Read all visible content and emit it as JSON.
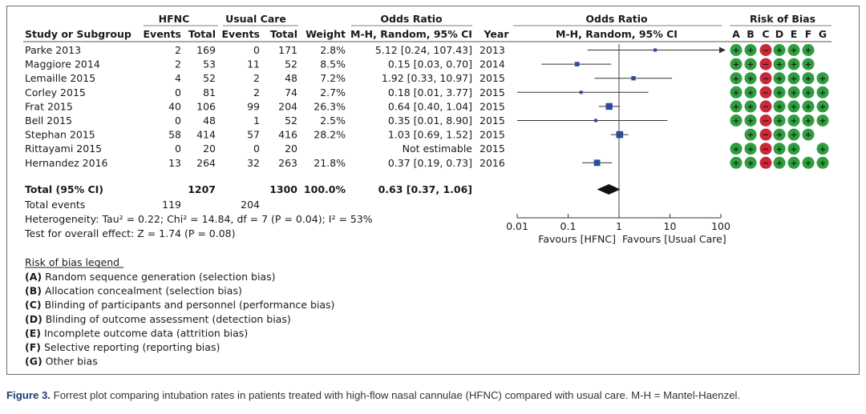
{
  "header": {
    "group1": "HFNC",
    "group2": "Usual Care",
    "or_left": "Odds Ratio",
    "or_left_sub": "M-H, Random, 95% CI",
    "or_right": "Odds Ratio",
    "or_right_sub": "M-H, Random, 95% CI",
    "rob": "Risk of Bias",
    "cols": {
      "study": "Study or Subgroup",
      "events1": "Events",
      "total1": "Total",
      "events2": "Events",
      "total2": "Total",
      "weight": "Weight",
      "year": "Year"
    },
    "rob_letters": [
      "A",
      "B",
      "C",
      "D",
      "E",
      "F",
      "G"
    ]
  },
  "studies": [
    {
      "name": "Parke 2013",
      "e1": "2",
      "t1": "169",
      "e2": "0",
      "t2": "171",
      "weight": "2.8%",
      "ci": "5.12 [0.24, 107.43]",
      "year": "2013",
      "rob": [
        "+",
        "+",
        "-",
        "+",
        "+",
        "+",
        ""
      ]
    },
    {
      "name": "Maggiore 2014",
      "e1": "2",
      "t1": "53",
      "e2": "11",
      "t2": "52",
      "weight": "8.5%",
      "ci": "0.15 [0.03, 0.70]",
      "year": "2014",
      "rob": [
        "+",
        "+",
        "-",
        "+",
        "+",
        "+",
        ""
      ]
    },
    {
      "name": "Lemaille 2015",
      "e1": "4",
      "t1": "52",
      "e2": "2",
      "t2": "48",
      "weight": "7.2%",
      "ci": "1.92 [0.33, 10.97]",
      "year": "2015",
      "rob": [
        "+",
        "+",
        "-",
        "+",
        "+",
        "+",
        "+"
      ]
    },
    {
      "name": "Corley 2015",
      "e1": "0",
      "t1": "81",
      "e2": "2",
      "t2": "74",
      "weight": "2.7%",
      "ci": "0.18 [0.01, 3.77]",
      "year": "2015",
      "rob": [
        "+",
        "+",
        "-",
        "+",
        "+",
        "+",
        "+"
      ]
    },
    {
      "name": "Frat 2015",
      "e1": "40",
      "t1": "106",
      "e2": "99",
      "t2": "204",
      "weight": "26.3%",
      "ci": "0.64 [0.40, 1.04]",
      "year": "2015",
      "rob": [
        "+",
        "+",
        "-",
        "+",
        "+",
        "+",
        "+"
      ]
    },
    {
      "name": "Bell 2015",
      "e1": "0",
      "t1": "48",
      "e2": "1",
      "t2": "52",
      "weight": "2.5%",
      "ci": "0.35 [0.01, 8.90]",
      "year": "2015",
      "rob": [
        "+",
        "+",
        "-",
        "+",
        "+",
        "+",
        "+"
      ]
    },
    {
      "name": "Stephan 2015",
      "e1": "58",
      "t1": "414",
      "e2": "57",
      "t2": "416",
      "weight": "28.2%",
      "ci": "1.03 [0.69, 1.52]",
      "year": "2015",
      "rob": [
        "",
        "+",
        "-",
        "+",
        "+",
        "+",
        ""
      ]
    },
    {
      "name": "Rittayami 2015",
      "e1": "0",
      "t1": "20",
      "e2": "0",
      "t2": "20",
      "weight": "",
      "ci": "Not estimable",
      "year": "2015",
      "rob": [
        "+",
        "+",
        "-",
        "+",
        "+",
        "",
        "+"
      ]
    },
    {
      "name": "Hernandez 2016",
      "e1": "13",
      "t1": "264",
      "e2": "32",
      "t2": "263",
      "weight": "21.8%",
      "ci": "0.37 [0.19, 0.73]",
      "year": "2016",
      "rob": [
        "+",
        "+",
        "-",
        "+",
        "+",
        "+",
        "+"
      ]
    }
  ],
  "total": {
    "label": "Total (95% CI)",
    "t1": "1207",
    "t2": "1300",
    "weight": "100.0%",
    "ci": "0.63 [0.37, 1.06]"
  },
  "total_events": {
    "label": "Total events",
    "e1": "119",
    "e2": "204"
  },
  "heterogeneity": "Heterogeneity: Tau² = 0.22; Chi² = 14.84, df = 7 (P = 0.04); I² = 53%",
  "overall_effect": "Test for overall effect: Z = 1.74 (P = 0.08)",
  "axis": {
    "ticks": [
      0.01,
      0.1,
      1,
      10,
      100
    ],
    "tick_labels": [
      "0.01",
      "0.1",
      "1",
      "10",
      "100"
    ],
    "favours_left": "Favours [HFNC]",
    "favours_right": "Favours [Usual Care]"
  },
  "legend": {
    "title": "Risk of bias legend",
    "items": [
      {
        "key": "(A)",
        "text": " Random sequence generation (selection bias)"
      },
      {
        "key": "(B)",
        "text": " Allocation concealment (selection bias)"
      },
      {
        "key": "(C)",
        "text": " Blinding of participants and personnel (performance bias)"
      },
      {
        "key": "(D)",
        "text": " Blinding of outcome assessment (detection bias)"
      },
      {
        "key": "(E)",
        "text": " Incomplete outcome data (attrition bias)"
      },
      {
        "key": "(F)",
        "text": " Selective reporting (reporting bias)"
      },
      {
        "key": "(G)",
        "text": " Other bias"
      }
    ]
  },
  "caption": {
    "label": "Figure 3.",
    "text": " Forrest plot comparing intubation rates in patients treated with high-flow nasal cannulae (HFNC) compared with usual care. M-H = Mantel-Haenzel."
  },
  "colors": {
    "plus": "#2e9e3e",
    "minus": "#c8283a",
    "marker": "#2b4c9a",
    "diamond": "#111111",
    "line": "#333333"
  },
  "chart_data": {
    "type": "forest",
    "xscale": "log",
    "xlim": [
      0.01,
      100
    ],
    "null_value": 1,
    "series": [
      {
        "name": "Parke 2013",
        "or": 5.12,
        "lower": 0.24,
        "upper": 107.43,
        "weight": 2.8
      },
      {
        "name": "Maggiore 2014",
        "or": 0.15,
        "lower": 0.03,
        "upper": 0.7,
        "weight": 8.5
      },
      {
        "name": "Lemaille 2015",
        "or": 1.92,
        "lower": 0.33,
        "upper": 10.97,
        "weight": 7.2
      },
      {
        "name": "Corley 2015",
        "or": 0.18,
        "lower": 0.01,
        "upper": 3.77,
        "weight": 2.7
      },
      {
        "name": "Frat 2015",
        "or": 0.64,
        "lower": 0.4,
        "upper": 1.04,
        "weight": 26.3
      },
      {
        "name": "Bell 2015",
        "or": 0.35,
        "lower": 0.01,
        "upper": 8.9,
        "weight": 2.5
      },
      {
        "name": "Stephan 2015",
        "or": 1.03,
        "lower": 0.69,
        "upper": 1.52,
        "weight": 28.2
      },
      {
        "name": "Rittayami 2015",
        "or": null,
        "lower": null,
        "upper": null,
        "weight": null
      },
      {
        "name": "Hernandez 2016",
        "or": 0.37,
        "lower": 0.19,
        "upper": 0.73,
        "weight": 21.8
      }
    ],
    "pooled": {
      "or": 0.63,
      "lower": 0.37,
      "upper": 1.06
    }
  }
}
